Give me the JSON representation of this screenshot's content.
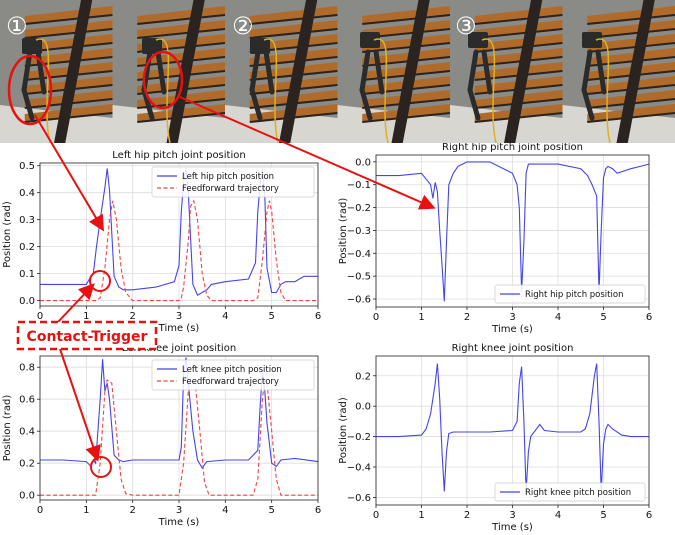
{
  "photo_strip": {
    "step_markers": [
      "①",
      "②",
      "③"
    ],
    "colors": {
      "sky": "#8a8a86",
      "stair_wood": "#b06a2a",
      "stair_dark": "#2a2320",
      "floor": "#d8d6d0",
      "robot": "#2b2b2b",
      "highlight": "#e81010"
    }
  },
  "annotation": {
    "label": "Contact-Trigger",
    "color": "#e81010"
  },
  "chart_data": [
    {
      "id": "left-hip",
      "type": "line",
      "title": "Left hip pitch joint position",
      "xlabel": "Time (s)",
      "ylabel": "Position (rad)",
      "xlim": [
        0,
        6
      ],
      "ylim": [
        -0.02,
        0.51
      ],
      "xticks": [
        0,
        1,
        2,
        3,
        4,
        5,
        6
      ],
      "yticks": [
        0.0,
        0.1,
        0.2,
        0.3,
        0.4,
        0.5
      ],
      "ytick_labels": [
        "0.0",
        "0.1",
        "0.2",
        "0.3",
        "0.4",
        "0.5"
      ],
      "grid": true,
      "legend_position": "top-right",
      "series": [
        {
          "name": "Left hip pitch position",
          "color": "#4444ee",
          "dash": "solid",
          "x": [
            0,
            0.5,
            1.0,
            1.1,
            1.15,
            1.22,
            1.3,
            1.4,
            1.45,
            1.5,
            1.6,
            1.7,
            1.8,
            2.0,
            2.5,
            2.9,
            3.0,
            3.05,
            3.1,
            3.15,
            3.2,
            3.3,
            3.4,
            3.5,
            3.6,
            3.7,
            4.0,
            4.5,
            4.65,
            4.7,
            4.75,
            4.8,
            4.85,
            4.9,
            5.0,
            5.1,
            5.2,
            5.3,
            5.5,
            5.7,
            6.0
          ],
          "y": [
            0.06,
            0.06,
            0.06,
            0.09,
            0.1,
            0.2,
            0.3,
            0.42,
            0.49,
            0.41,
            0.09,
            0.05,
            0.04,
            0.04,
            0.05,
            0.07,
            0.13,
            0.33,
            0.44,
            0.49,
            0.4,
            0.06,
            0.02,
            0.03,
            0.04,
            0.06,
            0.07,
            0.08,
            0.14,
            0.33,
            0.43,
            0.49,
            0.4,
            0.12,
            0.03,
            0.03,
            0.06,
            0.07,
            0.07,
            0.09,
            0.09
          ]
        },
        {
          "name": "Feedforward trajectory",
          "color": "#ee4444",
          "dash": "dashed",
          "x": [
            0,
            1.2,
            1.3,
            1.4,
            1.5,
            1.57,
            1.65,
            1.75,
            1.85,
            1.95,
            2.0,
            3.0,
            3.05,
            3.1,
            3.2,
            3.25,
            3.32,
            3.4,
            3.5,
            3.6,
            3.7,
            4.6,
            4.7,
            4.8,
            4.9,
            4.95,
            5.0,
            5.1,
            5.2,
            5.3,
            6.0
          ],
          "y": [
            0,
            0,
            0.01,
            0.12,
            0.3,
            0.37,
            0.3,
            0.12,
            0.03,
            0.01,
            0,
            0,
            0.01,
            0.05,
            0.22,
            0.35,
            0.37,
            0.3,
            0.1,
            0.02,
            0,
            0,
            0.01,
            0.15,
            0.33,
            0.37,
            0.33,
            0.15,
            0.03,
            0,
            0
          ]
        }
      ]
    },
    {
      "id": "right-hip",
      "type": "line",
      "title": "Right hip pitch joint position",
      "xlabel": "Time (s)",
      "ylabel": "Position (rad)",
      "xlim": [
        0,
        6
      ],
      "ylim": [
        -0.635,
        0.03
      ],
      "xticks": [
        0,
        1,
        2,
        3,
        4,
        5,
        6
      ],
      "yticks": [
        0.0,
        -0.1,
        -0.2,
        -0.3,
        -0.4,
        -0.5,
        -0.6
      ],
      "ytick_labels": [
        "0.0",
        "−0.1",
        "−0.2",
        "−0.3",
        "−0.4",
        "−0.5",
        "−0.6"
      ],
      "grid": true,
      "legend_position": "bottom-right",
      "series": [
        {
          "name": "Right hip pitch position",
          "color": "#4444ee",
          "dash": "solid",
          "x": [
            0,
            0.5,
            1.0,
            1.2,
            1.25,
            1.3,
            1.35,
            1.4,
            1.45,
            1.5,
            1.55,
            1.6,
            1.7,
            1.8,
            1.9,
            2.0,
            2.5,
            3.0,
            3.1,
            3.15,
            3.2,
            3.25,
            3.3,
            3.35,
            3.4,
            3.5,
            4.0,
            4.5,
            4.65,
            4.75,
            4.85,
            4.9,
            4.95,
            5.0,
            5.05,
            5.1,
            5.2,
            5.3,
            5.6,
            6.0
          ],
          "y": [
            -0.06,
            -0.06,
            -0.05,
            -0.1,
            -0.16,
            -0.09,
            -0.13,
            -0.3,
            -0.45,
            -0.61,
            -0.35,
            -0.1,
            -0.05,
            -0.02,
            -0.01,
            0,
            0,
            -0.05,
            -0.1,
            -0.2,
            -0.57,
            -0.35,
            -0.05,
            -0.01,
            -0.01,
            -0.01,
            -0.01,
            -0.03,
            -0.06,
            -0.1,
            -0.15,
            -0.57,
            -0.3,
            -0.07,
            -0.03,
            -0.02,
            -0.03,
            -0.05,
            -0.03,
            -0.01
          ]
        }
      ]
    },
    {
      "id": "left-knee",
      "type": "line",
      "title": "Left knee joint position",
      "xlabel": "Time (s)",
      "ylabel": "Position (rad)",
      "xlim": [
        0,
        6
      ],
      "ylim": [
        -0.03,
        0.87
      ],
      "xticks": [
        0,
        1,
        2,
        3,
        4,
        5,
        6
      ],
      "yticks": [
        0.0,
        0.2,
        0.4,
        0.6,
        0.8
      ],
      "ytick_labels": [
        "0.0",
        "0.2",
        "0.4",
        "0.6",
        "0.8"
      ],
      "grid": true,
      "legend_position": "top-right",
      "series": [
        {
          "name": "Left knee pitch position",
          "color": "#4444ee",
          "dash": "solid",
          "x": [
            0,
            0.5,
            1.0,
            1.1,
            1.15,
            1.2,
            1.25,
            1.3,
            1.35,
            1.4,
            1.45,
            1.5,
            1.6,
            1.7,
            1.8,
            2.0,
            2.5,
            3.0,
            3.05,
            3.1,
            3.15,
            3.2,
            3.3,
            3.4,
            3.5,
            3.6,
            4.0,
            4.5,
            4.7,
            4.75,
            4.8,
            4.85,
            4.9,
            5.0,
            5.1,
            5.2,
            5.5,
            6.0
          ],
          "y": [
            0.22,
            0.22,
            0.21,
            0.18,
            0.22,
            0.2,
            0.4,
            0.6,
            0.85,
            0.65,
            0.7,
            0.6,
            0.25,
            0.22,
            0.21,
            0.22,
            0.22,
            0.22,
            0.3,
            0.75,
            0.86,
            0.7,
            0.4,
            0.22,
            0.17,
            0.21,
            0.22,
            0.22,
            0.28,
            0.55,
            0.77,
            0.66,
            0.45,
            0.2,
            0.18,
            0.22,
            0.23,
            0.21
          ]
        },
        {
          "name": "Feedforward trajectory",
          "color": "#ee4444",
          "dash": "dashed",
          "x": [
            0,
            1.2,
            1.3,
            1.4,
            1.45,
            1.55,
            1.65,
            1.75,
            1.85,
            2.0,
            3.0,
            3.1,
            3.2,
            3.25,
            3.35,
            3.45,
            3.55,
            3.65,
            4.6,
            4.7,
            4.8,
            4.85,
            4.9,
            5.0,
            5.1,
            5.2,
            6.0
          ],
          "y": [
            0,
            0,
            0.2,
            0.65,
            0.72,
            0.7,
            0.4,
            0.1,
            0.01,
            0,
            0,
            0.2,
            0.65,
            0.72,
            0.7,
            0.4,
            0.08,
            0,
            0,
            0.1,
            0.6,
            0.72,
            0.7,
            0.4,
            0.1,
            0,
            0
          ]
        }
      ]
    },
    {
      "id": "right-knee",
      "type": "line",
      "title": "Right knee joint position",
      "xlabel": "Time (s)",
      "ylabel": "Position (rad)",
      "xlim": [
        0,
        6
      ],
      "ylim": [
        -0.65,
        0.33
      ],
      "xticks": [
        0,
        1,
        2,
        3,
        4,
        5,
        6
      ],
      "yticks": [
        0.2,
        0.0,
        -0.2,
        -0.4,
        -0.6
      ],
      "ytick_labels": [
        "0.2",
        "0.0",
        "−0.2",
        "−0.4",
        "−0.6"
      ],
      "grid": true,
      "legend_position": "bottom-right",
      "series": [
        {
          "name": "Right knee pitch position",
          "color": "#4444ee",
          "dash": "solid",
          "x": [
            0,
            0.5,
            1.0,
            1.1,
            1.2,
            1.3,
            1.35,
            1.4,
            1.45,
            1.5,
            1.55,
            1.6,
            1.7,
            2.0,
            2.5,
            3.0,
            3.1,
            3.15,
            3.2,
            3.25,
            3.3,
            3.35,
            3.4,
            3.5,
            3.6,
            3.7,
            4.0,
            4.5,
            4.6,
            4.7,
            4.8,
            4.85,
            4.9,
            4.95,
            5.0,
            5.05,
            5.1,
            5.2,
            5.4,
            5.6,
            6.0
          ],
          "y": [
            -0.2,
            -0.2,
            -0.19,
            -0.15,
            -0.05,
            0.15,
            0.28,
            0.05,
            -0.3,
            -0.56,
            -0.3,
            -0.18,
            -0.17,
            -0.17,
            -0.17,
            -0.16,
            -0.1,
            0.15,
            0.26,
            -0.1,
            -0.56,
            -0.3,
            -0.2,
            -0.16,
            -0.12,
            -0.16,
            -0.17,
            -0.17,
            -0.15,
            -0.05,
            0.2,
            0.28,
            -0.1,
            -0.56,
            -0.25,
            -0.15,
            -0.12,
            -0.15,
            -0.19,
            -0.2,
            -0.2
          ]
        }
      ]
    }
  ]
}
